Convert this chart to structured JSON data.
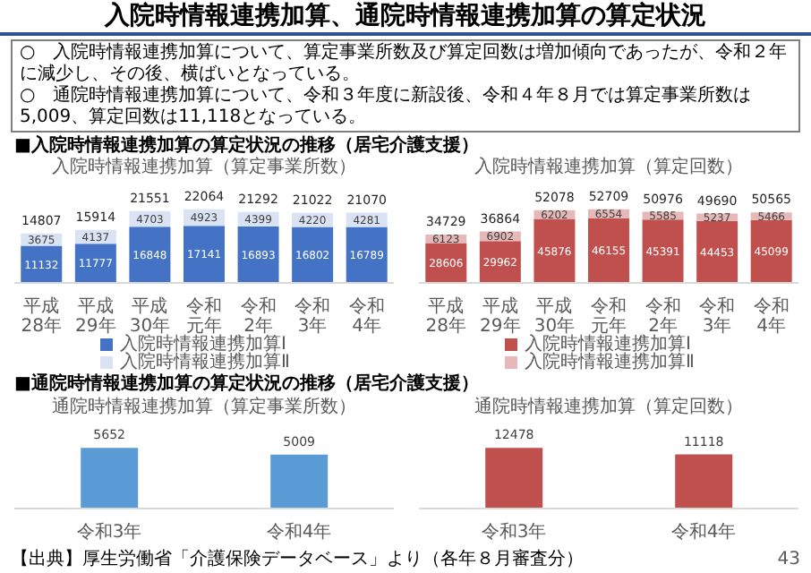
{
  "chart_data": [
    {
      "type": "other",
      "title": "入院時情報連携加算、通院時情報連携加算の算定状況",
      "annotations": [
        "○　入院時情報連携加算について、算定事業所数及び算定回数は増加傾向であったが、令和２年に減少し、その後、横ばいとなっている。",
        "○　通院時情報連携加算について、令和３年度に新設後、令和４年８月では算定事業所数は5,009、算定回数は11,118となっている。"
      ]
    },
    {
      "type": "bar",
      "subtitle": "■入院時情報連携加算の算定状況の推移（居宅介護支援）",
      "title": "入院時情報連携加算（算定事業所数）",
      "categories": [
        "平成28年",
        "平成29年",
        "平成30年",
        "令和元年",
        "令和2年",
        "令和3年",
        "令和4年"
      ],
      "stacked": true,
      "data_labels": true,
      "legend": "bottom",
      "series": [
        {
          "name": "入院時情報連携加算Ⅰ",
          "color": "#4472c4",
          "values": [
            11132,
            11777,
            16848,
            17141,
            16893,
            16802,
            16789
          ]
        },
        {
          "name": "入院時情報連携加算Ⅱ",
          "color": "#dae3f3",
          "values": [
            3675,
            4137,
            4703,
            4923,
            4399,
            4220,
            4281
          ]
        }
      ],
      "totals": [
        "14807",
        "15914",
        "21551",
        "22064",
        "21292",
        "21022",
        "21070"
      ]
    },
    {
      "type": "bar",
      "title": "入院時情報連携加算（算定回数）",
      "categories": [
        "平成28年",
        "平成29年",
        "平成30年",
        "令和元年",
        "令和2年",
        "令和3年",
        "令和4年"
      ],
      "stacked": true,
      "data_labels": true,
      "legend": "bottom",
      "series": [
        {
          "name": "入院時情報連携加算Ⅰ",
          "color": "#c0504d",
          "values": [
            28606,
            29962,
            45876,
            46155,
            45391,
            44453,
            45099
          ]
        },
        {
          "name": "入院時情報連携加算Ⅱ",
          "color": "#e6b9b8",
          "values": [
            6123,
            6902,
            6202,
            6554,
            5585,
            5237,
            5466
          ]
        }
      ],
      "totals": [
        "34729",
        "36864",
        "52078",
        "52709",
        "50976",
        "49690",
        "50565"
      ]
    },
    {
      "type": "bar",
      "subtitle": "■通院時情報連携加算の算定状況の推移（居宅介護支援）",
      "title": "通院時情報連携加算（算定事業所数）",
      "categories": [
        "令和3年",
        "令和4年"
      ],
      "values": [
        5652,
        5009
      ],
      "color": "#5b9bd5",
      "data_labels": true,
      "annotations": [
        "【出典】厚生労働省「介護保険データベース」より（各年８月審査分）"
      ]
    },
    {
      "type": "bar",
      "title": "通院時情報連携加算（算定回数）",
      "categories": [
        "令和3年",
        "令和4年"
      ],
      "values": [
        12478,
        11118
      ],
      "color": "#c0504d",
      "data_labels": true,
      "annotations": [
        "43"
      ]
    }
  ]
}
